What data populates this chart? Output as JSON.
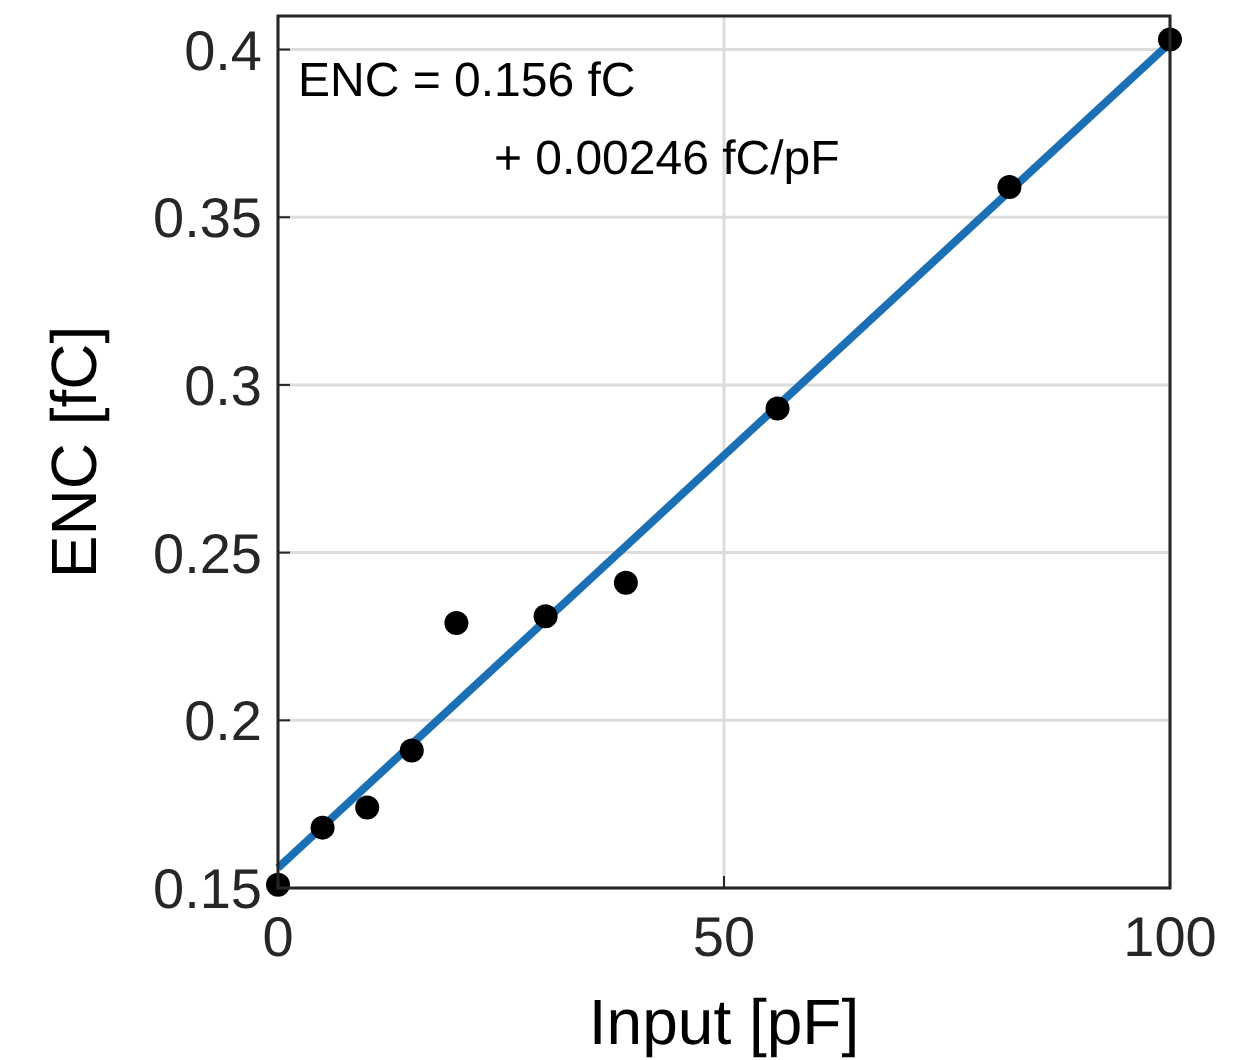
{
  "chart_data": {
    "type": "scatter",
    "xlabel": "Input [pF]",
    "ylabel": "ENC [fC]",
    "annotations": [
      "ENC = 0.156 fC",
      "+ 0.00246 fC/pF"
    ],
    "xlim": [
      0,
      100
    ],
    "ylim": [
      0.15,
      0.41
    ],
    "xticks": [
      0,
      50,
      100
    ],
    "yticks": [
      0.15,
      0.2,
      0.25,
      0.3,
      0.35,
      0.4
    ],
    "grid": true,
    "series": [
      {
        "color": "#000000",
        "marker": "circle",
        "x": [
          0,
          5,
          10,
          15,
          20,
          30,
          39,
          56,
          82,
          100
        ],
        "values": [
          0.151,
          0.168,
          0.174,
          0.191,
          0.229,
          0.231,
          0.241,
          0.293,
          0.359,
          0.403
        ]
      },
      {
        "type": "line",
        "color": "#1a6fb5",
        "x": [
          0,
          100
        ],
        "values": [
          0.156,
          0.402
        ],
        "line_style": "solid"
      }
    ]
  }
}
